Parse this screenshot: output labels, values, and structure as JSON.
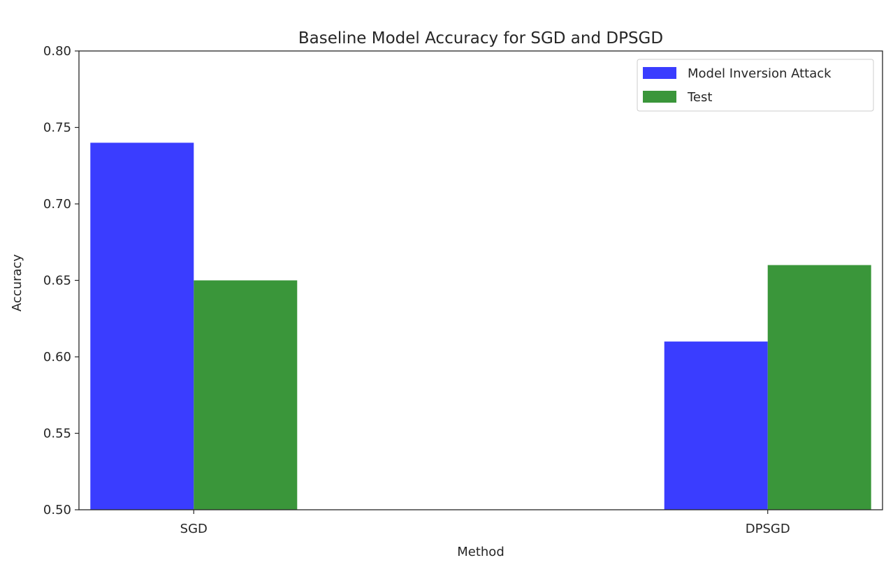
{
  "chart_data": {
    "type": "bar",
    "title": "Baseline Model Accuracy for SGD and DPSGD",
    "xlabel": "Method",
    "ylabel": "Accuracy",
    "categories": [
      "SGD",
      "DPSGD"
    ],
    "series": [
      {
        "name": "Model Inversion Attack",
        "values": [
          0.74,
          0.61
        ],
        "color": "#3a3dff"
      },
      {
        "name": "Test",
        "values": [
          0.65,
          0.66
        ],
        "color": "#3a963a"
      }
    ],
    "ylim": [
      0.5,
      0.8
    ],
    "yticks": [
      "0.50",
      "0.55",
      "0.60",
      "0.65",
      "0.70",
      "0.75",
      "0.80"
    ],
    "grid": false,
    "legend_position": "top-right"
  }
}
